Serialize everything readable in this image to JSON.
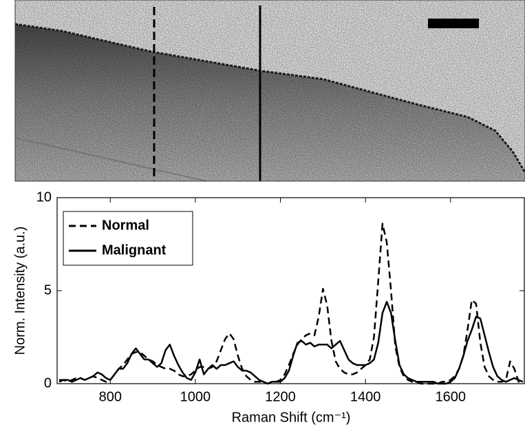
{
  "chart_data": {
    "type": "line",
    "x_label": "Raman Shift (cm⁻¹)",
    "y_label": "Norm. Intensity (a.u.)",
    "x": [
      680,
      690,
      700,
      710,
      720,
      730,
      740,
      750,
      760,
      770,
      780,
      790,
      800,
      810,
      820,
      830,
      840,
      850,
      860,
      870,
      880,
      890,
      900,
      910,
      920,
      930,
      940,
      950,
      960,
      970,
      980,
      990,
      1000,
      1010,
      1020,
      1030,
      1040,
      1050,
      1060,
      1070,
      1080,
      1090,
      1100,
      1110,
      1120,
      1130,
      1140,
      1150,
      1160,
      1170,
      1180,
      1190,
      1200,
      1210,
      1220,
      1230,
      1240,
      1250,
      1260,
      1270,
      1280,
      1290,
      1300,
      1310,
      1320,
      1330,
      1340,
      1350,
      1360,
      1370,
      1380,
      1390,
      1400,
      1410,
      1420,
      1430,
      1440,
      1450,
      1460,
      1470,
      1480,
      1490,
      1500,
      1510,
      1520,
      1530,
      1540,
      1550,
      1560,
      1570,
      1580,
      1590,
      1600,
      1610,
      1620,
      1630,
      1640,
      1650,
      1660,
      1670,
      1680,
      1690,
      1700,
      1710,
      1720,
      1730,
      1740,
      1750,
      1760,
      1770
    ],
    "series": [
      {
        "name": "Normal",
        "color": "#000000",
        "style": "dashed",
        "values": [
          0.2,
          0.2,
          0.1,
          0.2,
          0.3,
          0.3,
          0.2,
          0.3,
          0.4,
          0.3,
          0.2,
          0.1,
          0.2,
          0.5,
          0.8,
          1.0,
          1.3,
          1.6,
          1.7,
          1.7,
          1.5,
          1.3,
          1.2,
          1.0,
          0.9,
          0.8,
          0.8,
          0.7,
          0.5,
          0.4,
          0.4,
          0.5,
          0.7,
          0.9,
          0.9,
          0.8,
          0.9,
          1.2,
          1.8,
          2.4,
          2.7,
          2.4,
          1.5,
          0.8,
          0.4,
          0.2,
          0.1,
          0.1,
          0.1,
          0.0,
          0.1,
          0.1,
          0.2,
          0.5,
          1.0,
          1.6,
          2.1,
          2.4,
          2.6,
          2.7,
          2.6,
          3.6,
          5.1,
          4.2,
          2.3,
          1.2,
          0.8,
          0.6,
          0.5,
          0.5,
          0.6,
          0.8,
          1.0,
          1.3,
          2.5,
          5.5,
          8.6,
          7.6,
          5.0,
          2.0,
          0.9,
          0.4,
          0.2,
          0.1,
          0.1,
          0.0,
          0.0,
          0.0,
          0.0,
          0.0,
          0.1,
          0.1,
          0.2,
          0.4,
          0.8,
          1.5,
          2.9,
          4.5,
          4.3,
          2.2,
          0.9,
          0.4,
          0.2,
          0.1,
          0.1,
          0.2,
          1.2,
          0.8,
          0.1,
          0.1
        ]
      },
      {
        "name": "Malignant",
        "color": "#000000",
        "style": "solid",
        "values": [
          0.1,
          0.2,
          0.2,
          0.1,
          0.2,
          0.3,
          0.2,
          0.3,
          0.4,
          0.6,
          0.5,
          0.3,
          0.2,
          0.5,
          0.8,
          0.8,
          1.1,
          1.6,
          1.9,
          1.6,
          1.3,
          1.3,
          1.1,
          0.9,
          1.1,
          1.8,
          2.1,
          1.5,
          1.0,
          0.6,
          0.3,
          0.2,
          0.6,
          1.3,
          0.5,
          0.8,
          1.0,
          0.8,
          1.0,
          1.0,
          1.1,
          1.2,
          0.9,
          0.7,
          0.7,
          0.6,
          0.4,
          0.2,
          0.1,
          0.0,
          0.1,
          0.1,
          0.1,
          0.3,
          0.7,
          1.5,
          2.2,
          2.3,
          2.1,
          2.2,
          2.0,
          2.1,
          2.1,
          2.1,
          1.9,
          2.1,
          2.3,
          1.8,
          1.3,
          1.1,
          1.0,
          1.0,
          1.0,
          1.1,
          1.3,
          2.2,
          3.8,
          4.4,
          3.8,
          2.3,
          1.0,
          0.5,
          0.3,
          0.2,
          0.1,
          0.1,
          0.1,
          0.1,
          0.1,
          0.0,
          0.0,
          0.0,
          0.1,
          0.3,
          0.8,
          1.5,
          2.3,
          2.9,
          3.6,
          3.5,
          2.6,
          1.7,
          0.9,
          0.4,
          0.2,
          0.1,
          0.2,
          0.3,
          0.2,
          0.1
        ]
      }
    ],
    "xlim": [
      675,
      1775
    ],
    "xticks": [
      800,
      1000,
      1200,
      1400,
      1600
    ],
    "ylim": [
      0,
      10
    ],
    "yticks": [
      0,
      5,
      10
    ],
    "grid": false,
    "legend": "upper left"
  }
}
